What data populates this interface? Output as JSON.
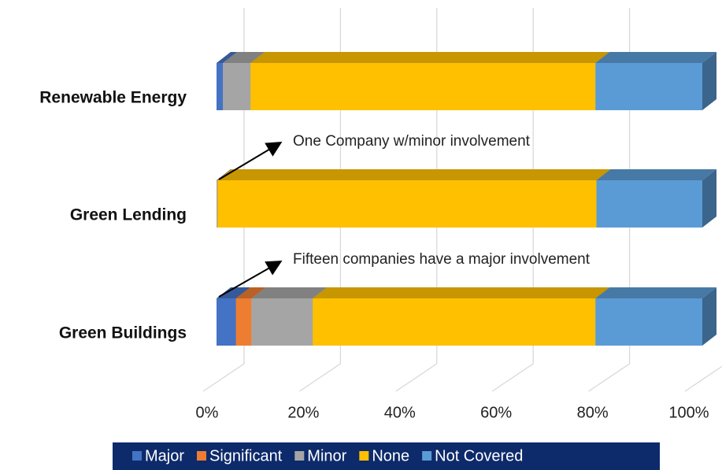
{
  "chart_data": {
    "type": "bar3d",
    "categories": [
      "Renewable Energy",
      "Green Lending",
      "Green Buildings"
    ],
    "series": [
      {
        "name": "Major",
        "color": "#4472c4",
        "values": [
          1.3,
          0,
          4
        ]
      },
      {
        "name": "Significant",
        "color": "#ed7d31",
        "values": [
          0,
          0,
          3.2
        ]
      },
      {
        "name": "Minor",
        "color": "#a5a5a5",
        "values": [
          5.7,
          0.2,
          12.6
        ]
      },
      {
        "name": "None",
        "color": "#ffc000",
        "values": [
          71,
          78,
          58.2
        ]
      },
      {
        "name": "Not Covered",
        "color": "#5b9bd5",
        "values": [
          22,
          21.8,
          22
        ]
      }
    ],
    "xlim": [
      0,
      100
    ],
    "xticks": [
      {
        "value": 0,
        "label": "0%"
      },
      {
        "value": 20,
        "label": "20%"
      },
      {
        "value": 40,
        "label": "40%"
      },
      {
        "value": 60,
        "label": "60%"
      },
      {
        "value": 80,
        "label": "80%"
      },
      {
        "value": 100,
        "label": "100%"
      }
    ],
    "grid": true,
    "annotations": [
      "One Company w/minor involvement",
      "Fifteen companies have a major involvement"
    ],
    "legend_position": "bottom"
  }
}
